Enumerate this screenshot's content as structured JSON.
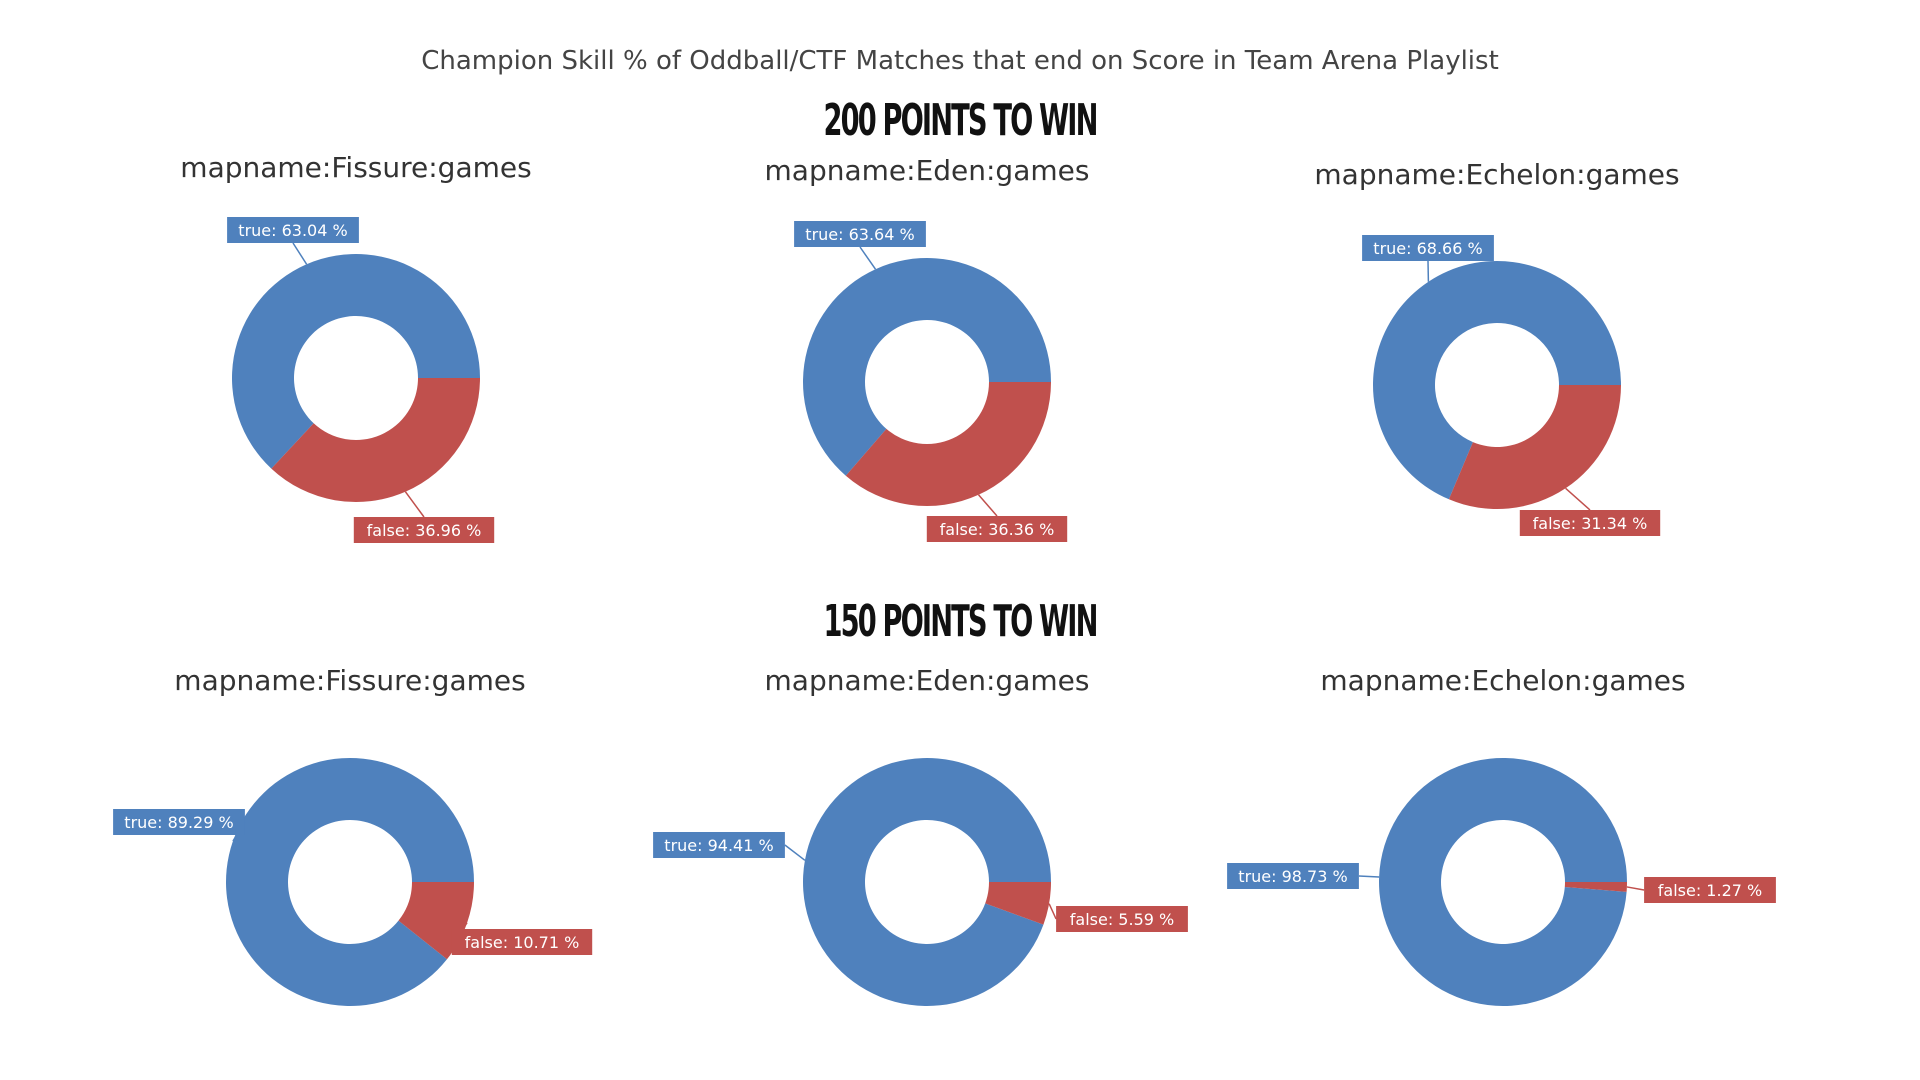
{
  "title": "Champion Skill % of Oddball/CTF Matches that end on Score in Team Arena Playlist",
  "sections": [
    {
      "heading": "200 POINTS TO WIN"
    },
    {
      "heading": "150 POINTS TO WIN"
    }
  ],
  "colors": {
    "true": "#4f81bd",
    "false": "#c0504d"
  },
  "chart_data": [
    {
      "type": "pie",
      "title": "mapname:Fissure:games",
      "labels": [
        "true",
        "false"
      ],
      "values": [
        63.04,
        36.96
      ]
    },
    {
      "type": "pie",
      "title": "mapname:Eden:games",
      "labels": [
        "true",
        "false"
      ],
      "values": [
        63.64,
        36.36
      ]
    },
    {
      "type": "pie",
      "title": "mapname:Echelon:games",
      "labels": [
        "true",
        "false"
      ],
      "values": [
        68.66,
        31.34
      ]
    },
    {
      "type": "pie",
      "title": "mapname:Fissure:games",
      "labels": [
        "true",
        "false"
      ],
      "values": [
        89.29,
        10.71
      ]
    },
    {
      "type": "pie",
      "title": "mapname:Eden:games",
      "labels": [
        "true",
        "false"
      ],
      "values": [
        94.41,
        5.59
      ]
    },
    {
      "type": "pie",
      "title": "mapname:Echelon:games",
      "labels": [
        "true",
        "false"
      ],
      "values": [
        98.73,
        1.27
      ]
    }
  ]
}
